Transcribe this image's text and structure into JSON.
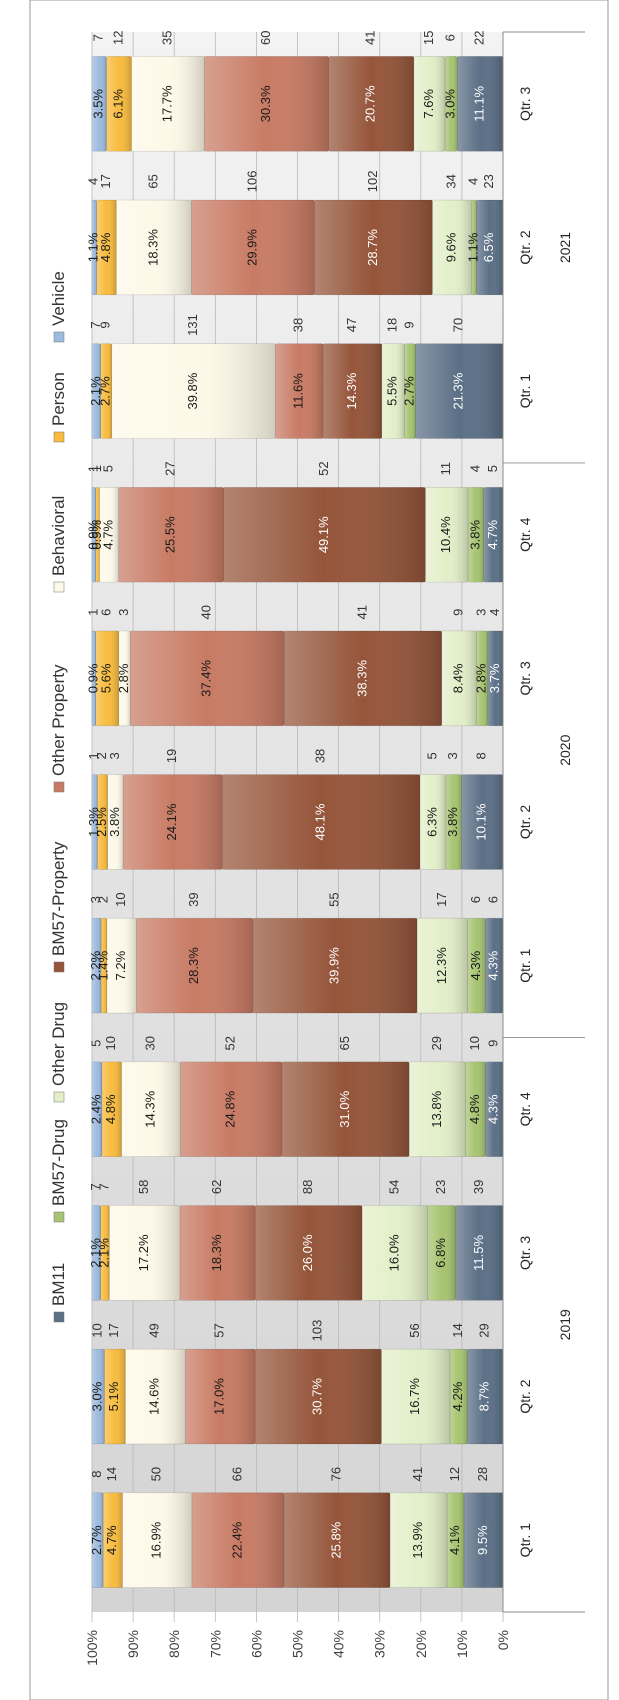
{
  "chart_data": {
    "type": "bar",
    "stacked": "percent",
    "orientation": "rotated",
    "title": "",
    "legend_placement": "top",
    "grid": true,
    "ylim": [
      0,
      100
    ],
    "y_ticks": [
      "0%",
      "10%",
      "20%",
      "30%",
      "40%",
      "50%",
      "60%",
      "70%",
      "80%",
      "90%",
      "100%"
    ],
    "categories": [
      "Qtr. 1",
      "Qtr. 2",
      "Qtr. 3",
      "Qtr. 4",
      "Qtr. 1",
      "Qtr. 2",
      "Qtr. 3",
      "Qtr. 4",
      "Qtr. 1",
      "Qtr. 2",
      "Qtr. 3"
    ],
    "groups": [
      {
        "label": "2019",
        "count": 4
      },
      {
        "label": "2020",
        "count": 4
      },
      {
        "label": "2021",
        "count": 3
      }
    ],
    "series": [
      {
        "name": "BM11",
        "color": "#5b6f86",
        "percents": [
          "9.5%",
          "8.7%",
          "11.5%",
          "4.3%",
          "4.3%",
          "10.1%",
          "3.7%",
          "4.7%",
          "21.3%",
          "6.5%",
          "11.1%"
        ],
        "counts": [
          28,
          29,
          39,
          9,
          6,
          8,
          4,
          5,
          70,
          23,
          22
        ]
      },
      {
        "name": "BM57-Drug",
        "color": "#a6c471",
        "percents": [
          "4.1%",
          "4.2%",
          "6.8%",
          "4.8%",
          "4.3%",
          "3.8%",
          "2.8%",
          "3.8%",
          "2.7%",
          "1.1%",
          "3.0%"
        ],
        "counts": [
          12,
          14,
          23,
          10,
          6,
          3,
          3,
          4,
          9,
          4,
          6
        ]
      },
      {
        "name": "Other Drug",
        "color": "#e3efc9",
        "percents": [
          "13.9%",
          "16.7%",
          "16.0%",
          "13.8%",
          "12.3%",
          "6.3%",
          "8.4%",
          "10.4%",
          "5.5%",
          "9.6%",
          "7.6%"
        ],
        "counts": [
          41,
          56,
          54,
          29,
          17,
          5,
          9,
          11,
          18,
          34,
          15
        ]
      },
      {
        "name": "BM57-Property",
        "color": "#95553a",
        "percents": [
          "25.8%",
          "30.7%",
          "26.0%",
          "31.0%",
          "39.9%",
          "48.1%",
          "38.3%",
          "49.1%",
          "14.3%",
          "28.7%",
          "20.7%"
        ],
        "counts": [
          76,
          103,
          88,
          65,
          55,
          38,
          41,
          52,
          47,
          102,
          41
        ]
      },
      {
        "name": "Other Property",
        "color": "#c87b64",
        "percents": [
          "22.4%",
          "17.0%",
          "18.3%",
          "24.8%",
          "28.3%",
          "24.1%",
          "37.4%",
          "25.5%",
          "11.6%",
          "29.9%",
          "30.3%"
        ],
        "counts": [
          66,
          57,
          62,
          52,
          39,
          19,
          40,
          27,
          38,
          106,
          60
        ]
      },
      {
        "name": "Behavioral",
        "color": "#fdf9e8",
        "percents": [
          "16.9%",
          "14.6%",
          "17.2%",
          "14.3%",
          "7.2%",
          "3.8%",
          "2.8%",
          "4.7%",
          "39.8%",
          "18.3%",
          "17.7%"
        ],
        "counts": [
          50,
          49,
          58,
          30,
          10,
          3,
          3,
          5,
          131,
          65,
          35
        ]
      },
      {
        "name": "Person",
        "color": "#f8bb3d",
        "percents": [
          "4.7%",
          "5.1%",
          "2.1%",
          "4.8%",
          "1.4%",
          "2.5%",
          "5.6%",
          "0.9%",
          "2.7%",
          "4.8%",
          "6.1%"
        ],
        "counts": [
          14,
          17,
          7,
          10,
          2,
          2,
          6,
          1,
          9,
          17,
          12
        ]
      },
      {
        "name": "Vehicle",
        "color": "#9dbbdf",
        "percents": [
          "2.7%",
          "3.0%",
          "2.1%",
          "2.4%",
          "2.2%",
          "1.3%",
          "0.9%",
          "0.9%",
          "2.1%",
          "1.1%",
          "3.5%"
        ],
        "counts": [
          8,
          10,
          7,
          5,
          3,
          1,
          1,
          1,
          7,
          4,
          7
        ]
      }
    ]
  }
}
